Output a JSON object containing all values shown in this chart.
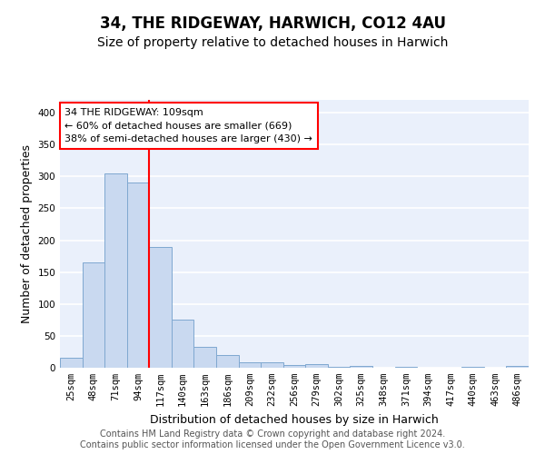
{
  "title": "34, THE RIDGEWAY, HARWICH, CO12 4AU",
  "subtitle": "Size of property relative to detached houses in Harwich",
  "xlabel": "Distribution of detached houses by size in Harwich",
  "ylabel": "Number of detached properties",
  "categories": [
    "25sqm",
    "48sqm",
    "71sqm",
    "94sqm",
    "117sqm",
    "140sqm",
    "163sqm",
    "186sqm",
    "209sqm",
    "232sqm",
    "256sqm",
    "279sqm",
    "302sqm",
    "325sqm",
    "348sqm",
    "371sqm",
    "394sqm",
    "417sqm",
    "440sqm",
    "463sqm",
    "486sqm"
  ],
  "values": [
    15,
    165,
    305,
    290,
    190,
    75,
    33,
    20,
    9,
    8,
    4,
    5,
    1,
    3,
    0,
    1,
    0,
    0,
    2,
    0,
    3
  ],
  "bar_color": "#c9d9f0",
  "bar_edge_color": "#7fa8d0",
  "red_line_index": 4,
  "annotation_line1": "34 THE RIDGEWAY: 109sqm",
  "annotation_line2": "← 60% of detached houses are smaller (669)",
  "annotation_line3": "38% of semi-detached houses are larger (430) →",
  "annotation_box_color": "white",
  "annotation_box_edge_color": "red",
  "red_line_color": "red",
  "ylim": [
    0,
    420
  ],
  "yticks": [
    0,
    50,
    100,
    150,
    200,
    250,
    300,
    350,
    400
  ],
  "background_color": "#eaf0fb",
  "grid_color": "white",
  "footer_text": "Contains HM Land Registry data © Crown copyright and database right 2024.\nContains public sector information licensed under the Open Government Licence v3.0.",
  "title_fontsize": 12,
  "subtitle_fontsize": 10,
  "xlabel_fontsize": 9,
  "ylabel_fontsize": 9,
  "tick_fontsize": 7.5,
  "footer_fontsize": 7
}
